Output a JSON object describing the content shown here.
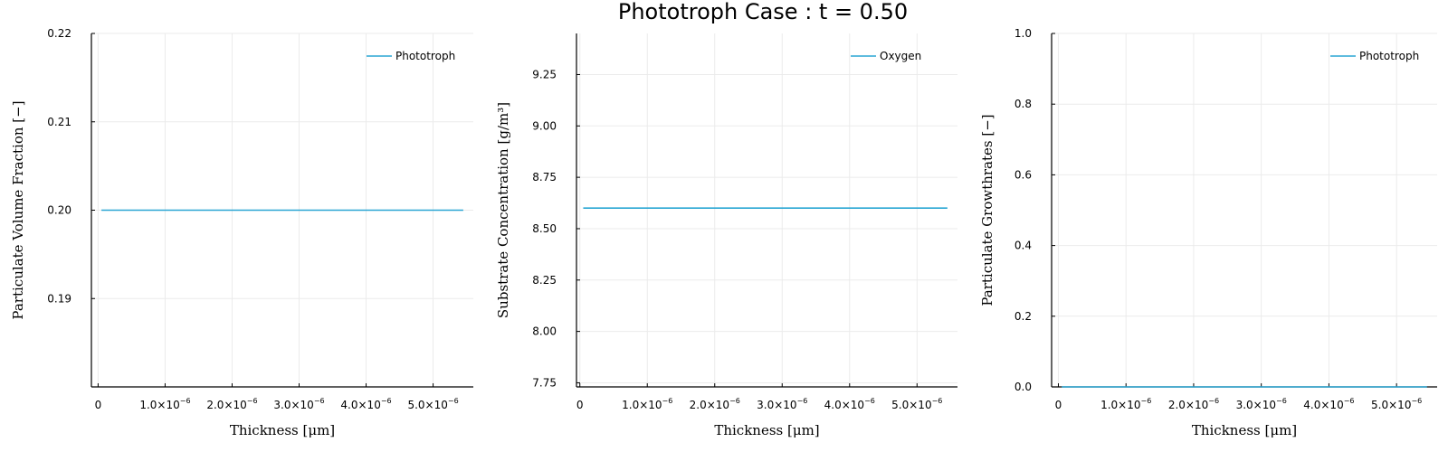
{
  "figure": {
    "title": "Phototroph Case : t = 0.50",
    "series_color": "#2aa6d4",
    "grid_color": "#ebebeb"
  },
  "chart_data": [
    {
      "type": "line",
      "xlabel": "Thickness [μm]",
      "ylabel": "Particulate Volume Fraction [−]",
      "xlim": [
        -1e-07,
        5.6e-06
      ],
      "ylim": [
        0.18,
        0.22
      ],
      "xticks": [
        {
          "value": 0,
          "label": "0"
        },
        {
          "value": 1e-06,
          "label": "1.0×10",
          "exp": "−6"
        },
        {
          "value": 2e-06,
          "label": "2.0×10",
          "exp": "−6"
        },
        {
          "value": 3e-06,
          "label": "3.0×10",
          "exp": "−6"
        },
        {
          "value": 4e-06,
          "label": "4.0×10",
          "exp": "−6"
        },
        {
          "value": 5e-06,
          "label": "5.0×10",
          "exp": "−6"
        }
      ],
      "yticks": [
        {
          "value": 0.19,
          "label": "0.19"
        },
        {
          "value": 0.2,
          "label": "0.20"
        },
        {
          "value": 0.21,
          "label": "0.21"
        },
        {
          "value": 0.22,
          "label": "0.22"
        }
      ],
      "grid": true,
      "legend": "top-right",
      "series": [
        {
          "name": "Phototroph",
          "x": [
            5e-08,
            5.45e-06
          ],
          "y": [
            0.2,
            0.2
          ]
        }
      ]
    },
    {
      "type": "line",
      "xlabel": "Thickness [μm]",
      "ylabel": "Substrate Concentration [g/m³]",
      "xlim": [
        -5e-08,
        5.6e-06
      ],
      "ylim": [
        7.73,
        9.45
      ],
      "xticks": [
        {
          "value": 0,
          "label": "0"
        },
        {
          "value": 1e-06,
          "label": "1.0×10",
          "exp": "−6"
        },
        {
          "value": 2e-06,
          "label": "2.0×10",
          "exp": "−6"
        },
        {
          "value": 3e-06,
          "label": "3.0×10",
          "exp": "−6"
        },
        {
          "value": 4e-06,
          "label": "4.0×10",
          "exp": "−6"
        },
        {
          "value": 5e-06,
          "label": "5.0×10",
          "exp": "−6"
        }
      ],
      "yticks": [
        {
          "value": 7.75,
          "label": "7.75"
        },
        {
          "value": 8.0,
          "label": "8.00"
        },
        {
          "value": 8.25,
          "label": "8.25"
        },
        {
          "value": 8.5,
          "label": "8.50"
        },
        {
          "value": 8.75,
          "label": "8.75"
        },
        {
          "value": 9.0,
          "label": "9.00"
        },
        {
          "value": 9.25,
          "label": "9.25"
        }
      ],
      "grid": true,
      "legend": "top-right",
      "series": [
        {
          "name": "Oxygen",
          "x": [
            5e-08,
            5.45e-06
          ],
          "y": [
            8.6,
            8.6
          ]
        }
      ]
    },
    {
      "type": "line",
      "xlabel": "Thickness [μm]",
      "ylabel": "Particulate Growthrates [−]",
      "xlim": [
        -1e-07,
        5.6e-06
      ],
      "ylim": [
        0.0,
        1.0
      ],
      "xticks": [
        {
          "value": 0,
          "label": "0"
        },
        {
          "value": 1e-06,
          "label": "1.0×10",
          "exp": "−6"
        },
        {
          "value": 2e-06,
          "label": "2.0×10",
          "exp": "−6"
        },
        {
          "value": 3e-06,
          "label": "3.0×10",
          "exp": "−6"
        },
        {
          "value": 4e-06,
          "label": "4.0×10",
          "exp": "−6"
        },
        {
          "value": 5e-06,
          "label": "5.0×10",
          "exp": "−6"
        }
      ],
      "yticks": [
        {
          "value": 0.0,
          "label": "0.0"
        },
        {
          "value": 0.2,
          "label": "0.2"
        },
        {
          "value": 0.4,
          "label": "0.4"
        },
        {
          "value": 0.6,
          "label": "0.6"
        },
        {
          "value": 0.8,
          "label": "0.8"
        },
        {
          "value": 1.0,
          "label": "1.0"
        }
      ],
      "grid": true,
      "legend": "top-right",
      "series": [
        {
          "name": "Phototroph",
          "x": [
            5e-08,
            5.45e-06
          ],
          "y": [
            0.0,
            0.0
          ]
        }
      ]
    }
  ]
}
